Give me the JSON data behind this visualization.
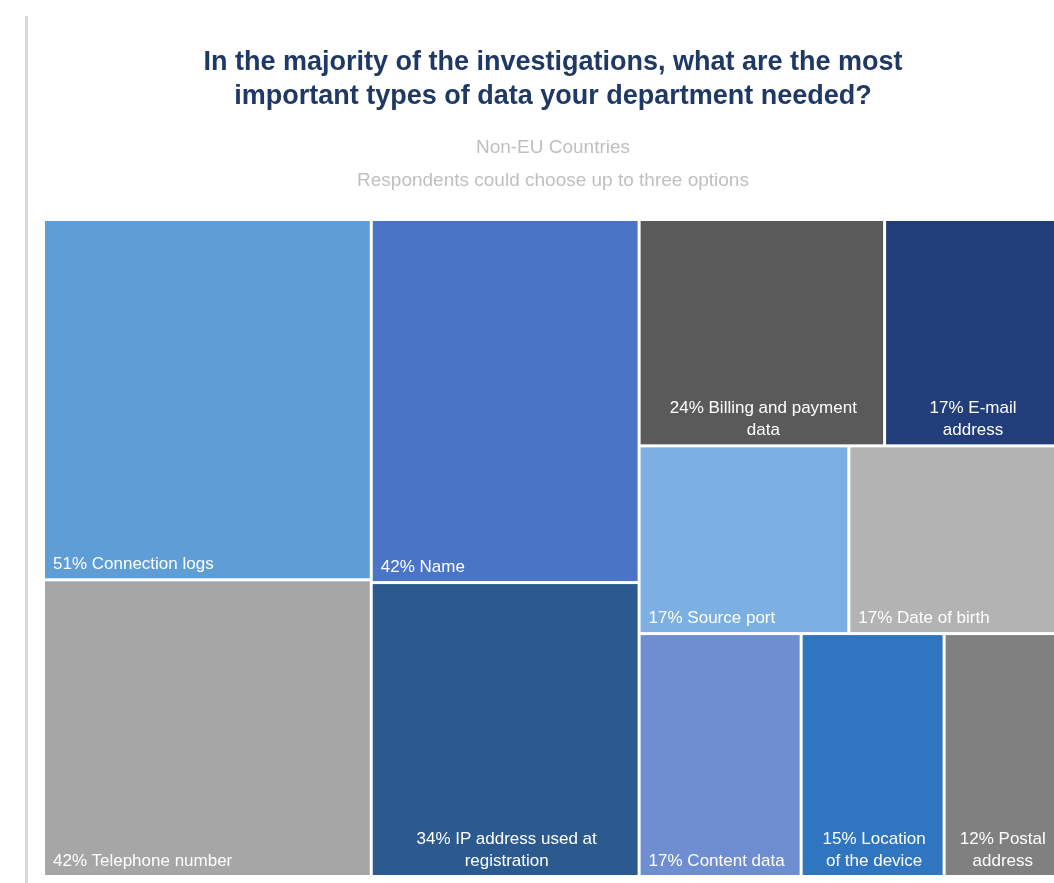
{
  "chart_data": {
    "type": "other",
    "title": "In the majority of the investigations, what are the most important types of data your department needed?",
    "subtitle": "Non-EU Countries",
    "annotations": [
      "Respondents could choose up to three options"
    ],
    "categories": [
      "Connection logs",
      "Telephone number",
      "Name",
      "IP address used at registration",
      "Billing and payment data",
      "E-mail address",
      "Source port",
      "Date of birth",
      "Content data",
      "Location of the device",
      "Postal address"
    ],
    "values": [
      51,
      42,
      42,
      34,
      24,
      17,
      17,
      17,
      17,
      15,
      12
    ],
    "value_labels": [
      "51%",
      "42%",
      "42%",
      "34%",
      "24%",
      "17%",
      "17%",
      "17%",
      "17%",
      "15%",
      "12%"
    ],
    "colors": [
      "#5e9dd6",
      "#a6a6a6",
      "#4a74c6",
      "#2c5a8e",
      "#5a5a5a",
      "#213d7a",
      "#7cb0e2",
      "#b3b3b3",
      "#6f8ed2",
      "#2f75bf",
      "#808080"
    ]
  }
}
